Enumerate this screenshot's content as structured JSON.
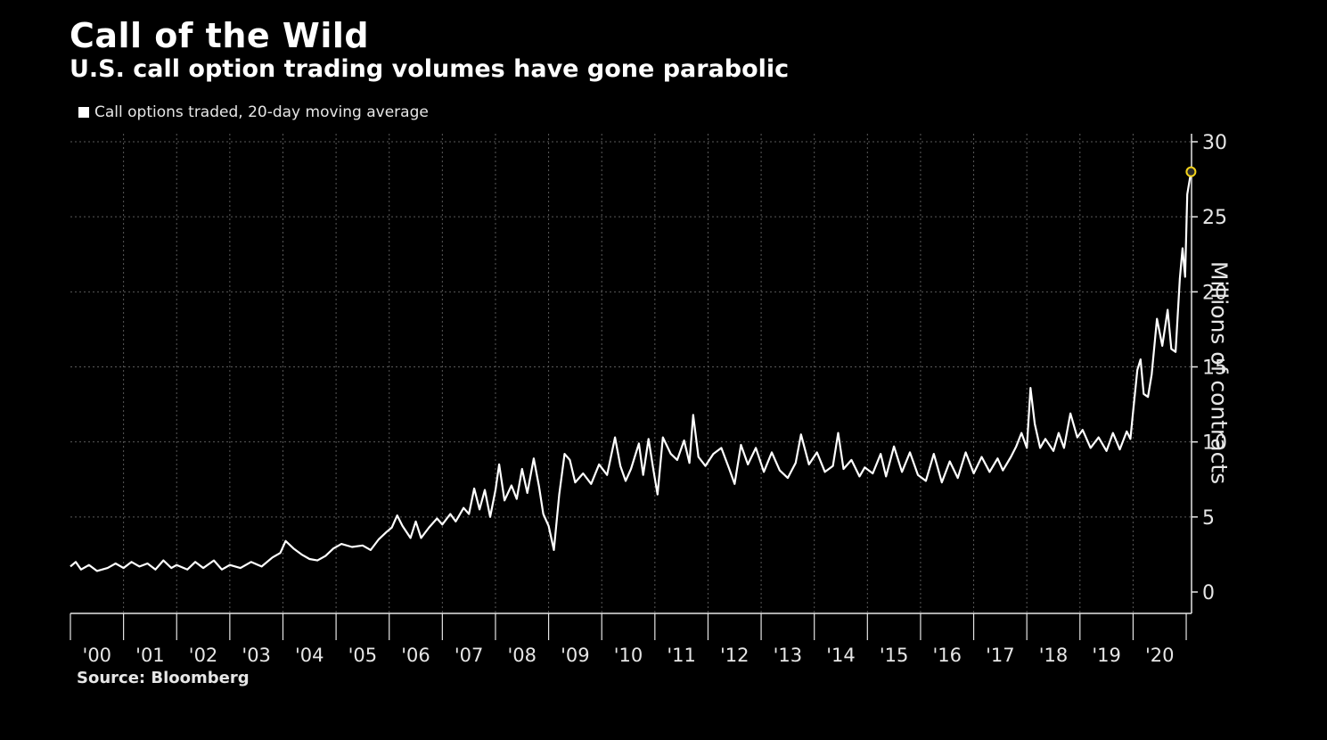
{
  "header": {
    "title": "Call of the Wild",
    "subtitle": "U.S. call option trading volumes have gone parabolic"
  },
  "footer": {
    "source": "Source: Bloomberg"
  },
  "colors": {
    "background": "#000000",
    "line": "#ffffff",
    "highlight": "#f2d21b",
    "grid": "#5a5a5a",
    "text": "#e6e6e6"
  },
  "chart_data": {
    "type": "line",
    "title": "Call of the Wild",
    "subtitle": "U.S. call option trading volumes have gone parabolic",
    "ylabel": "Millions of contracts",
    "xlabel": "",
    "ylim": [
      0,
      30
    ],
    "y_ticks": [
      0,
      5,
      10,
      15,
      20,
      25,
      30
    ],
    "xlim": [
      2000.0,
      2021.1
    ],
    "x_tick_labels": [
      "'00",
      "'01",
      "'02",
      "'03",
      "'04",
      "'05",
      "'06",
      "'07",
      "'08",
      "'09",
      "'10",
      "'11",
      "'12",
      "'13",
      "'14",
      "'15",
      "'16",
      "'17",
      "'18",
      "'19",
      "'20"
    ],
    "grid": true,
    "legend_position": "top-left",
    "series": [
      {
        "name": "Call options traded, 20-day moving average",
        "points": [
          [
            2000.0,
            1.7
          ],
          [
            2000.1,
            2.0
          ],
          [
            2000.2,
            1.5
          ],
          [
            2000.35,
            1.8
          ],
          [
            2000.5,
            1.4
          ],
          [
            2000.7,
            1.6
          ],
          [
            2000.85,
            1.9
          ],
          [
            2001.0,
            1.6
          ],
          [
            2001.15,
            2.0
          ],
          [
            2001.3,
            1.7
          ],
          [
            2001.45,
            1.9
          ],
          [
            2001.6,
            1.5
          ],
          [
            2001.75,
            2.1
          ],
          [
            2001.9,
            1.6
          ],
          [
            2002.0,
            1.8
          ],
          [
            2002.2,
            1.5
          ],
          [
            2002.35,
            2.0
          ],
          [
            2002.5,
            1.6
          ],
          [
            2002.7,
            2.1
          ],
          [
            2002.85,
            1.5
          ],
          [
            2003.0,
            1.8
          ],
          [
            2003.2,
            1.6
          ],
          [
            2003.4,
            2.0
          ],
          [
            2003.6,
            1.7
          ],
          [
            2003.8,
            2.3
          ],
          [
            2003.95,
            2.6
          ],
          [
            2004.05,
            3.4
          ],
          [
            2004.2,
            2.9
          ],
          [
            2004.35,
            2.5
          ],
          [
            2004.5,
            2.2
          ],
          [
            2004.65,
            2.1
          ],
          [
            2004.8,
            2.4
          ],
          [
            2004.95,
            2.9
          ],
          [
            2005.1,
            3.2
          ],
          [
            2005.3,
            3.0
          ],
          [
            2005.5,
            3.1
          ],
          [
            2005.65,
            2.8
          ],
          [
            2005.8,
            3.5
          ],
          [
            2005.95,
            4.0
          ],
          [
            2006.05,
            4.3
          ],
          [
            2006.15,
            5.1
          ],
          [
            2006.25,
            4.4
          ],
          [
            2006.4,
            3.6
          ],
          [
            2006.5,
            4.7
          ],
          [
            2006.6,
            3.6
          ],
          [
            2006.75,
            4.3
          ],
          [
            2006.9,
            4.9
          ],
          [
            2007.0,
            4.5
          ],
          [
            2007.15,
            5.2
          ],
          [
            2007.25,
            4.7
          ],
          [
            2007.4,
            5.6
          ],
          [
            2007.5,
            5.2
          ],
          [
            2007.6,
            6.9
          ],
          [
            2007.7,
            5.5
          ],
          [
            2007.8,
            6.8
          ],
          [
            2007.9,
            5.0
          ],
          [
            2008.0,
            6.8
          ],
          [
            2008.07,
            8.5
          ],
          [
            2008.17,
            6.1
          ],
          [
            2008.3,
            7.1
          ],
          [
            2008.4,
            6.2
          ],
          [
            2008.5,
            8.2
          ],
          [
            2008.6,
            6.6
          ],
          [
            2008.72,
            8.9
          ],
          [
            2008.82,
            7.0
          ],
          [
            2008.9,
            5.2
          ],
          [
            2009.0,
            4.4
          ],
          [
            2009.1,
            2.8
          ],
          [
            2009.2,
            6.5
          ],
          [
            2009.3,
            9.2
          ],
          [
            2009.4,
            8.8
          ],
          [
            2009.5,
            7.3
          ],
          [
            2009.65,
            7.9
          ],
          [
            2009.8,
            7.2
          ],
          [
            2009.95,
            8.5
          ],
          [
            2010.1,
            7.8
          ],
          [
            2010.25,
            10.3
          ],
          [
            2010.35,
            8.4
          ],
          [
            2010.45,
            7.4
          ],
          [
            2010.55,
            8.2
          ],
          [
            2010.7,
            9.9
          ],
          [
            2010.78,
            7.8
          ],
          [
            2010.88,
            10.2
          ],
          [
            2010.97,
            8.2
          ],
          [
            2011.05,
            6.5
          ],
          [
            2011.15,
            10.3
          ],
          [
            2011.3,
            9.2
          ],
          [
            2011.42,
            8.8
          ],
          [
            2011.55,
            10.1
          ],
          [
            2011.65,
            8.6
          ],
          [
            2011.72,
            11.8
          ],
          [
            2011.82,
            9.0
          ],
          [
            2011.95,
            8.4
          ],
          [
            2012.1,
            9.2
          ],
          [
            2012.25,
            9.6
          ],
          [
            2012.4,
            8.2
          ],
          [
            2012.5,
            7.2
          ],
          [
            2012.62,
            9.8
          ],
          [
            2012.75,
            8.5
          ],
          [
            2012.9,
            9.6
          ],
          [
            2013.05,
            8.0
          ],
          [
            2013.2,
            9.3
          ],
          [
            2013.35,
            8.1
          ],
          [
            2013.5,
            7.6
          ],
          [
            2013.65,
            8.6
          ],
          [
            2013.75,
            10.5
          ],
          [
            2013.9,
            8.5
          ],
          [
            2014.05,
            9.3
          ],
          [
            2014.2,
            8.0
          ],
          [
            2014.35,
            8.4
          ],
          [
            2014.45,
            10.6
          ],
          [
            2014.55,
            8.2
          ],
          [
            2014.7,
            8.8
          ],
          [
            2014.85,
            7.7
          ],
          [
            2014.95,
            8.3
          ],
          [
            2015.1,
            7.9
          ],
          [
            2015.25,
            9.2
          ],
          [
            2015.35,
            7.7
          ],
          [
            2015.5,
            9.7
          ],
          [
            2015.65,
            8.0
          ],
          [
            2015.8,
            9.3
          ],
          [
            2015.95,
            7.8
          ],
          [
            2016.1,
            7.4
          ],
          [
            2016.25,
            9.2
          ],
          [
            2016.4,
            7.3
          ],
          [
            2016.55,
            8.7
          ],
          [
            2016.7,
            7.6
          ],
          [
            2016.85,
            9.3
          ],
          [
            2017.0,
            7.9
          ],
          [
            2017.15,
            9.0
          ],
          [
            2017.3,
            8.0
          ],
          [
            2017.45,
            8.9
          ],
          [
            2017.55,
            8.1
          ],
          [
            2017.7,
            9.0
          ],
          [
            2017.8,
            9.7
          ],
          [
            2017.9,
            10.6
          ],
          [
            2018.0,
            9.6
          ],
          [
            2018.07,
            13.6
          ],
          [
            2018.15,
            11.2
          ],
          [
            2018.25,
            9.6
          ],
          [
            2018.35,
            10.2
          ],
          [
            2018.5,
            9.4
          ],
          [
            2018.6,
            10.6
          ],
          [
            2018.7,
            9.6
          ],
          [
            2018.82,
            11.9
          ],
          [
            2018.95,
            10.3
          ],
          [
            2019.05,
            10.8
          ],
          [
            2019.2,
            9.6
          ],
          [
            2019.35,
            10.3
          ],
          [
            2019.5,
            9.4
          ],
          [
            2019.62,
            10.6
          ],
          [
            2019.75,
            9.5
          ],
          [
            2019.88,
            10.7
          ],
          [
            2019.95,
            10.2
          ],
          [
            2020.0,
            12.0
          ],
          [
            2020.08,
            14.8
          ],
          [
            2020.14,
            15.5
          ],
          [
            2020.2,
            13.2
          ],
          [
            2020.28,
            13.0
          ],
          [
            2020.35,
            14.5
          ],
          [
            2020.45,
            18.2
          ],
          [
            2020.55,
            16.4
          ],
          [
            2020.65,
            18.8
          ],
          [
            2020.72,
            16.2
          ],
          [
            2020.8,
            16.0
          ],
          [
            2020.88,
            20.9
          ],
          [
            2020.93,
            22.9
          ],
          [
            2020.98,
            21.0
          ],
          [
            2021.02,
            26.5
          ],
          [
            2021.09,
            28.0
          ]
        ]
      }
    ],
    "annotations": [
      {
        "type": "highlight_point",
        "x": 2021.09,
        "y": 28.0
      }
    ]
  }
}
